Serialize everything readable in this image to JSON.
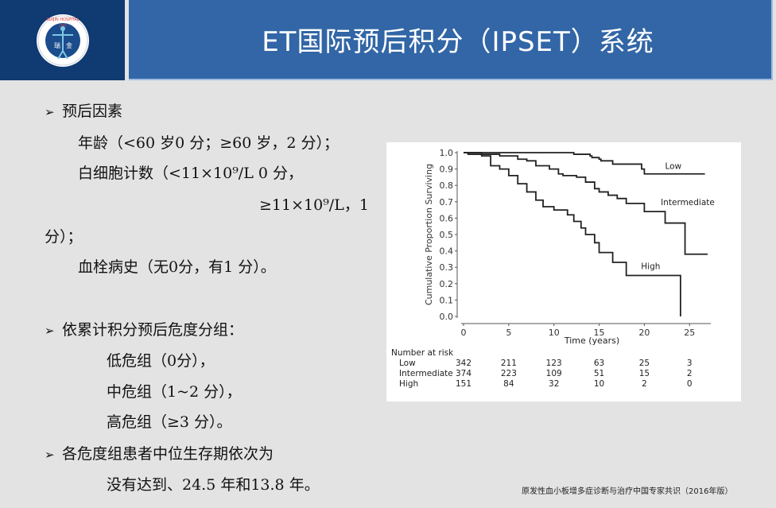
{
  "header": {
    "title": "ET国际预后积分（IPSET）系统",
    "logo": {
      "name": "ruijin-hospital-logo",
      "ring_text_top": "RUIJIN HOSPITAL",
      "year": "1907",
      "characters": "瑞 金"
    },
    "colors": {
      "logo_panel": "#0f3a72",
      "title_panel": "#3266a6",
      "title_text": "#ffffff"
    }
  },
  "body": {
    "section1": {
      "bullet": "➢",
      "heading": "预后因素",
      "lines": [
        "年龄（<60 岁0 分；≥60 岁，2 分）；",
        "白细胞计数（<11×10⁹/L 0 分，",
        "≥11×10⁹/L，1",
        "分）；",
        "血栓病史（无0分，有1 分）。"
      ]
    },
    "section2": {
      "bullet": "➢",
      "heading": "依累计积分预后危度分组：",
      "lines": [
        "低危组（0分），",
        "中危组（1~2 分），",
        "高危组（≥3 分）。"
      ]
    },
    "section3": {
      "bullet": "➢",
      "heading": "各危度组患者中位生存期依次为",
      "lines": [
        "没有达到、24.5 年和13.8 年。"
      ]
    }
  },
  "source": "原发性血小板增多症诊断与治疗中国专家共识（2016年版）",
  "chart_data": {
    "type": "line",
    "subtype": "kaplan-meier step",
    "title": "",
    "xlabel": "Time (years)",
    "ylabel": "Cumulative Proportion Surviving",
    "xlim": [
      0,
      27
    ],
    "ylim": [
      0.0,
      1.0
    ],
    "xticks": [
      0,
      5,
      10,
      15,
      20,
      25
    ],
    "yticks": [
      "0.0",
      "0.1",
      "0.2",
      "0.3",
      "0.4",
      "0.5",
      "0.6",
      "0.7",
      "0.8",
      "0.9",
      "1.0"
    ],
    "grid": false,
    "legend": "inline labels",
    "series": [
      {
        "name": "Low",
        "points": [
          [
            0,
            1.0
          ],
          [
            12,
            1.0
          ],
          [
            12.2,
            0.99
          ],
          [
            14,
            0.98
          ],
          [
            14.2,
            0.97
          ],
          [
            15,
            0.96
          ],
          [
            15.2,
            0.95
          ],
          [
            16.5,
            0.93
          ],
          [
            19.5,
            0.93
          ],
          [
            19.7,
            0.9
          ],
          [
            20,
            0.87
          ],
          [
            26.7,
            0.87
          ]
        ]
      },
      {
        "name": "Intermediate",
        "points": [
          [
            0,
            1.0
          ],
          [
            2,
            0.99
          ],
          [
            4,
            0.98
          ],
          [
            6,
            0.96
          ],
          [
            7,
            0.95
          ],
          [
            8,
            0.92
          ],
          [
            9.5,
            0.9
          ],
          [
            10.5,
            0.87
          ],
          [
            11,
            0.86
          ],
          [
            12.5,
            0.85
          ],
          [
            13.5,
            0.82
          ],
          [
            14.5,
            0.78
          ],
          [
            15,
            0.76
          ],
          [
            16,
            0.74
          ],
          [
            17,
            0.72
          ],
          [
            18,
            0.69
          ],
          [
            20,
            0.64
          ],
          [
            22.3,
            0.57
          ],
          [
            24.5,
            0.38
          ],
          [
            27,
            0.38
          ]
        ]
      },
      {
        "name": "High",
        "points": [
          [
            0,
            1.0
          ],
          [
            0.5,
            0.99
          ],
          [
            2,
            0.98
          ],
          [
            3,
            0.92
          ],
          [
            4,
            0.9
          ],
          [
            5,
            0.86
          ],
          [
            6,
            0.81
          ],
          [
            7,
            0.76
          ],
          [
            8,
            0.71
          ],
          [
            8.8,
            0.67
          ],
          [
            10,
            0.65
          ],
          [
            11.5,
            0.62
          ],
          [
            12.2,
            0.58
          ],
          [
            13,
            0.54
          ],
          [
            13.5,
            0.5
          ],
          [
            14.5,
            0.45
          ],
          [
            15,
            0.39
          ],
          [
            16.5,
            0.33
          ],
          [
            18,
            0.25
          ],
          [
            24,
            0.25
          ],
          [
            24,
            0.0
          ]
        ]
      }
    ],
    "number_at_risk": {
      "title": "Number at risk",
      "timepoints": [
        0,
        5,
        10,
        15,
        20,
        25
      ],
      "rows": [
        {
          "label": "Low",
          "values": [
            342,
            211,
            123,
            63,
            25,
            3
          ]
        },
        {
          "label": "Intermediate",
          "values": [
            374,
            223,
            109,
            51,
            15,
            2
          ]
        },
        {
          "label": "High",
          "values": [
            151,
            84,
            32,
            10,
            2,
            0
          ]
        }
      ]
    }
  }
}
